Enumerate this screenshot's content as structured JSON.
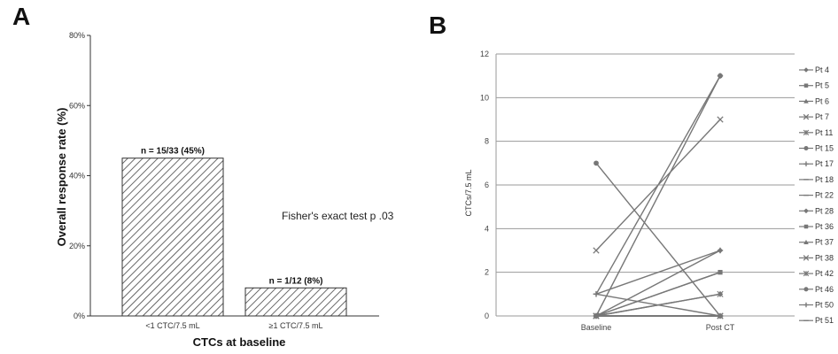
{
  "chart_data": [
    {
      "panel": "A",
      "type": "bar",
      "categories": [
        "<1 CTC/7.5 mL",
        "≥1 CTC/7.5 mL"
      ],
      "values": [
        45,
        8
      ],
      "bar_labels": [
        "n = 15/33 (45%)",
        "n = 1/12 (8%)"
      ],
      "ylabel": "Overall response rate (%)",
      "xlabel": "CTCs at baseline",
      "ylim": [
        0,
        80
      ],
      "yticks": [
        "0%",
        "20%",
        "40%",
        "60%",
        "80%"
      ],
      "annotation": "Fisher's exact test p .03",
      "bar_fill": "diagonal-hatch",
      "grid": false
    },
    {
      "panel": "B",
      "type": "line",
      "x": [
        "Baseline",
        "Post CT"
      ],
      "ylabel": "CTCs/7.5 mL",
      "ylim": [
        0,
        12
      ],
      "yticks": [
        "0",
        "2",
        "4",
        "6",
        "8",
        "10",
        "12"
      ],
      "grid": true,
      "legend_position": "right",
      "series": [
        {
          "name": "Pt 4",
          "values": [
            0,
            1
          ],
          "marker": "diamond"
        },
        {
          "name": "Pt 5",
          "values": [
            0,
            2
          ],
          "marker": "square"
        },
        {
          "name": "Pt 6",
          "values": [
            0,
            0
          ],
          "marker": "triangle"
        },
        {
          "name": "Pt 7",
          "values": [
            0,
            0
          ],
          "marker": "x"
        },
        {
          "name": "Pt 11",
          "values": [
            0,
            0
          ],
          "marker": "asterisk"
        },
        {
          "name": "Pt 15",
          "values": [
            0,
            11
          ],
          "marker": "circle"
        },
        {
          "name": "Pt 17",
          "values": [
            1,
            3
          ],
          "marker": "plus"
        },
        {
          "name": "Pt 18",
          "values": [
            1,
            0
          ],
          "marker": "dash"
        },
        {
          "name": "Pt 22",
          "values": [
            0,
            0
          ],
          "marker": "dash"
        },
        {
          "name": "Pt 28",
          "values": [
            0,
            3
          ],
          "marker": "diamond"
        },
        {
          "name": "Pt 36",
          "values": [
            0,
            2
          ],
          "marker": "square"
        },
        {
          "name": "Pt 37",
          "values": [
            0,
            0
          ],
          "marker": "triangle"
        },
        {
          "name": "Pt 38",
          "values": [
            3,
            9
          ],
          "marker": "x"
        },
        {
          "name": "Pt 42",
          "values": [
            0,
            1
          ],
          "marker": "asterisk"
        },
        {
          "name": "Pt 46",
          "values": [
            7,
            0
          ],
          "marker": "circle"
        },
        {
          "name": "Pt 50",
          "values": [
            1,
            11
          ],
          "marker": "plus"
        },
        {
          "name": "Pt 51",
          "values": [
            0,
            0
          ],
          "marker": "dash"
        }
      ],
      "line_color": "#777777"
    }
  ],
  "panels": {
    "a_letter": "A",
    "b_letter": "B"
  }
}
